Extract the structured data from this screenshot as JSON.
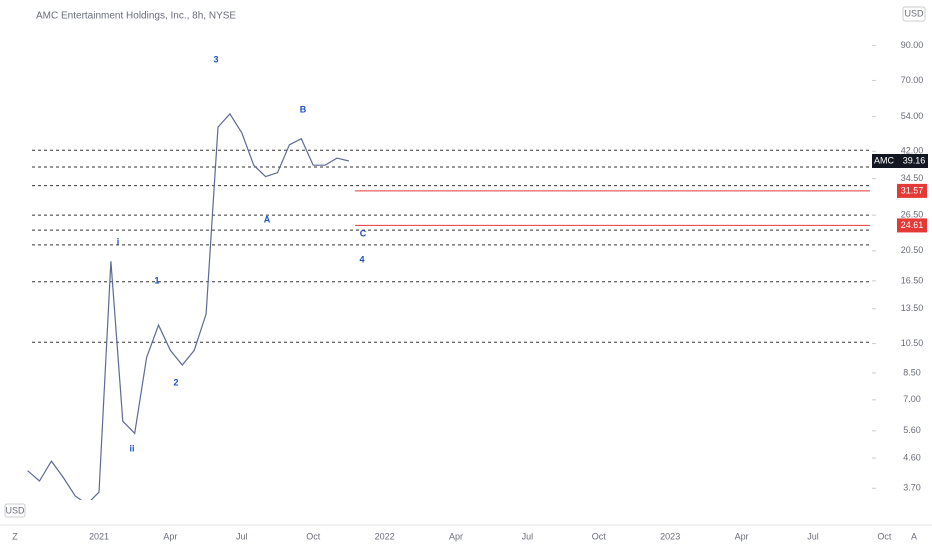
{
  "chart_data": {
    "type": "line",
    "title": "AMC Entertainment Holdings, Inc., 8h, NYSE",
    "currency": "USD",
    "symbol": "AMC",
    "corner_left": "Z",
    "corner_right": "A",
    "log_scale": true,
    "categories": [
      null,
      null,
      null,
      null,
      null,
      null,
      "2021",
      null,
      null,
      null,
      null,
      null,
      "Apr",
      null,
      null,
      null,
      null,
      null,
      "Jul",
      null,
      null,
      null,
      null,
      null,
      "Oct",
      null,
      null,
      null,
      null,
      null,
      "2022",
      null,
      null,
      null,
      null,
      null,
      "Apr",
      null,
      null,
      null,
      null,
      null,
      "Jul",
      null,
      null,
      null,
      null,
      null,
      "Oct",
      null,
      null,
      null,
      null,
      null,
      "2023",
      null,
      null,
      null,
      null,
      null,
      "Apr",
      null,
      null,
      null,
      null,
      null,
      "Jul",
      null,
      null,
      null,
      null,
      null,
      "Oct"
    ],
    "series": [
      {
        "name": "AMC",
        "color": "#5d6a94",
        "values": [
          4.2,
          3.9,
          4.5,
          4.0,
          3.5,
          3.3,
          3.6,
          19,
          6,
          5.5,
          9.5,
          12,
          10,
          9,
          10,
          13,
          50,
          55,
          48,
          38,
          35,
          36,
          44,
          46,
          38,
          38,
          40,
          39.16,
          null,
          null,
          null,
          null,
          null,
          null,
          null,
          null,
          null,
          null,
          null,
          null,
          null,
          null,
          null,
          null,
          null,
          null,
          null,
          null,
          null,
          null,
          null,
          null,
          null,
          null,
          null,
          null,
          null,
          null,
          null,
          null,
          null,
          null,
          null,
          null,
          null,
          null,
          null,
          null,
          null,
          null,
          null,
          null,
          null
        ]
      }
    ],
    "ylim": [
      3.4,
      125
    ],
    "yticks": [
      {
        "value": 90,
        "label": "90.00"
      },
      {
        "value": 70,
        "label": "70.00"
      },
      {
        "value": 54,
        "label": "54.00"
      },
      {
        "value": 42,
        "label": "42.00"
      },
      {
        "value": 34.5,
        "label": "34.50"
      },
      {
        "value": 26.5,
        "label": "26.50"
      },
      {
        "value": 20.5,
        "label": "20.50"
      },
      {
        "value": 16.5,
        "label": "16.50"
      },
      {
        "value": 13.5,
        "label": "13.50"
      },
      {
        "value": 10.5,
        "label": "10.50"
      },
      {
        "value": 8.5,
        "label": "8.50"
      },
      {
        "value": 7,
        "label": "7.00"
      },
      {
        "value": 5.6,
        "label": "5.60"
      },
      {
        "value": 4.6,
        "label": "4.60"
      },
      {
        "value": 3.7,
        "label": "3.70"
      }
    ],
    "levels": [
      42.3,
      37.5,
      32.8,
      26.5,
      23.8,
      21.4,
      16.4,
      10.6
    ],
    "red_levels": [
      31.57,
      24.61
    ],
    "line_color": "#e53935",
    "wave_labels": [
      "i",
      "ii",
      "1",
      "2",
      "3",
      "A",
      "B",
      "C",
      "4"
    ]
  }
}
